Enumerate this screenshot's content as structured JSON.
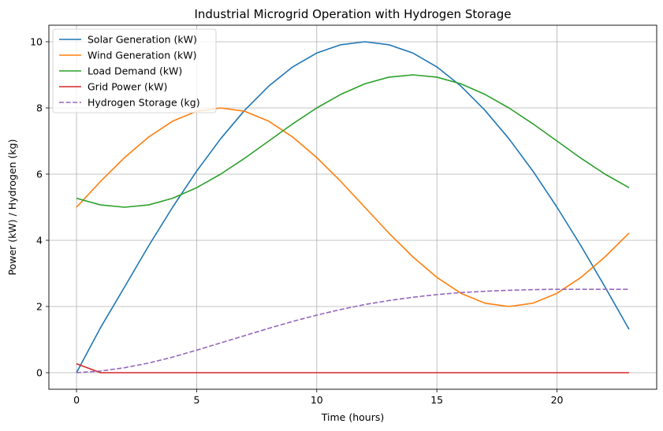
{
  "chart_data": {
    "type": "line",
    "title": "Industrial Microgrid Operation with Hydrogen Storage",
    "xlabel": "Time (hours)",
    "ylabel": "Power (kW) / Hydrogen (kg)",
    "xlim": [
      -1.15,
      24.15
    ],
    "ylim": [
      -0.5,
      10.5
    ],
    "xticks": [
      0,
      5,
      10,
      15,
      20
    ],
    "yticks": [
      0,
      2,
      4,
      6,
      8,
      10
    ],
    "grid": true,
    "legend_position": "top-left",
    "x": [
      0,
      1,
      2,
      3,
      4,
      5,
      6,
      7,
      8,
      9,
      10,
      11,
      12,
      13,
      14,
      15,
      16,
      17,
      18,
      19,
      20,
      21,
      22,
      23
    ],
    "series": [
      {
        "name": "Solar Generation (kW)",
        "color": "#1f77b4",
        "dash": "solid",
        "values": [
          0.0,
          1.36,
          2.59,
          3.83,
          5.0,
          6.09,
          7.07,
          7.93,
          8.66,
          9.24,
          9.66,
          9.91,
          10.0,
          9.91,
          9.66,
          9.24,
          8.66,
          7.93,
          7.07,
          6.09,
          5.0,
          3.83,
          2.59,
          1.31
        ]
      },
      {
        "name": "Wind Generation (kW)",
        "color": "#ff7f0e",
        "dash": "solid",
        "values": [
          5.0,
          5.78,
          6.5,
          7.12,
          7.6,
          7.9,
          8.0,
          7.9,
          7.6,
          7.12,
          6.5,
          5.78,
          5.0,
          4.22,
          3.5,
          2.88,
          2.4,
          2.1,
          2.0,
          2.1,
          2.4,
          2.88,
          3.5,
          4.22
        ]
      },
      {
        "name": "Load Demand (kW)",
        "color": "#2ca02c",
        "dash": "solid",
        "values": [
          5.27,
          5.07,
          5.0,
          5.07,
          5.27,
          5.59,
          6.0,
          6.48,
          7.0,
          7.52,
          8.0,
          8.41,
          8.73,
          8.93,
          9.0,
          8.93,
          8.73,
          8.41,
          8.0,
          7.52,
          7.0,
          6.48,
          6.0,
          5.59
        ]
      },
      {
        "name": "Grid Power (kW)",
        "color": "#d62728",
        "dash": "solid",
        "values": [
          0.27,
          0,
          0,
          0,
          0,
          0,
          0,
          0,
          0,
          0,
          0,
          0,
          0,
          0,
          0,
          0,
          0,
          0,
          0,
          0,
          0,
          0,
          0,
          0
        ]
      },
      {
        "name": "Hydrogen Storage (kg)",
        "color": "#9467bd",
        "dash": "dashed",
        "values": [
          0.0,
          0.05,
          0.15,
          0.29,
          0.47,
          0.68,
          0.9,
          1.12,
          1.34,
          1.55,
          1.74,
          1.91,
          2.06,
          2.18,
          2.28,
          2.36,
          2.42,
          2.46,
          2.49,
          2.51,
          2.52,
          2.52,
          2.52,
          2.52
        ]
      }
    ]
  }
}
